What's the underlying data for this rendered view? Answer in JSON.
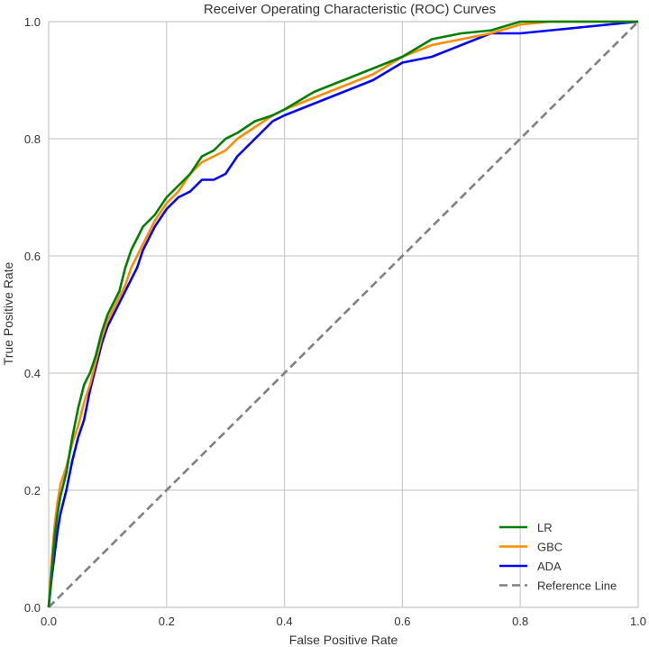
{
  "chart_data": {
    "type": "line",
    "title": "Receiver Operating Characteristic (ROC) Curves",
    "xlabel": "False Positive Rate",
    "ylabel": "True Positive Rate",
    "xlim": [
      0,
      1
    ],
    "ylim": [
      0,
      1
    ],
    "xticks": [
      "0.0",
      "0.2",
      "0.4",
      "0.6",
      "0.8",
      "1.0"
    ],
    "yticks": [
      "0.0",
      "0.2",
      "0.4",
      "0.6",
      "0.8",
      "1.0"
    ],
    "grid": true,
    "legend_position": "bottom-right",
    "series": [
      {
        "name": "LR",
        "color": "#008000",
        "style": "solid",
        "x": [
          0,
          0.005,
          0.01,
          0.015,
          0.02,
          0.03,
          0.04,
          0.05,
          0.06,
          0.07,
          0.08,
          0.09,
          0.1,
          0.11,
          0.12,
          0.13,
          0.14,
          0.15,
          0.16,
          0.18,
          0.2,
          0.22,
          0.24,
          0.26,
          0.28,
          0.3,
          0.32,
          0.35,
          0.38,
          0.4,
          0.45,
          0.5,
          0.55,
          0.6,
          0.65,
          0.7,
          0.75,
          0.8,
          0.85,
          0.9,
          0.95,
          1.0
        ],
        "y": [
          0,
          0.06,
          0.12,
          0.16,
          0.19,
          0.23,
          0.29,
          0.34,
          0.38,
          0.4,
          0.43,
          0.47,
          0.5,
          0.52,
          0.54,
          0.58,
          0.61,
          0.63,
          0.65,
          0.67,
          0.7,
          0.72,
          0.74,
          0.77,
          0.78,
          0.8,
          0.81,
          0.83,
          0.84,
          0.85,
          0.88,
          0.9,
          0.92,
          0.94,
          0.97,
          0.98,
          0.985,
          1.0,
          1.0,
          1.0,
          1.0,
          1.0
        ]
      },
      {
        "name": "GBC",
        "color": "#ff8c00",
        "style": "solid",
        "x": [
          0,
          0.005,
          0.01,
          0.015,
          0.02,
          0.03,
          0.04,
          0.05,
          0.06,
          0.07,
          0.08,
          0.09,
          0.1,
          0.11,
          0.12,
          0.13,
          0.14,
          0.15,
          0.16,
          0.18,
          0.2,
          0.22,
          0.24,
          0.26,
          0.28,
          0.3,
          0.32,
          0.35,
          0.38,
          0.4,
          0.45,
          0.5,
          0.55,
          0.6,
          0.65,
          0.7,
          0.75,
          0.8,
          0.85,
          0.9,
          0.95,
          1.0
        ],
        "y": [
          0,
          0.08,
          0.14,
          0.18,
          0.21,
          0.24,
          0.28,
          0.31,
          0.35,
          0.38,
          0.42,
          0.46,
          0.49,
          0.51,
          0.53,
          0.55,
          0.58,
          0.6,
          0.62,
          0.66,
          0.69,
          0.71,
          0.74,
          0.76,
          0.77,
          0.78,
          0.8,
          0.82,
          0.84,
          0.85,
          0.87,
          0.89,
          0.91,
          0.94,
          0.96,
          0.97,
          0.98,
          0.995,
          1.0,
          1.0,
          1.0,
          1.0
        ]
      },
      {
        "name": "ADA",
        "color": "#0000ff",
        "style": "solid",
        "x": [
          0,
          0.005,
          0.01,
          0.015,
          0.02,
          0.03,
          0.04,
          0.05,
          0.06,
          0.07,
          0.08,
          0.09,
          0.1,
          0.11,
          0.12,
          0.13,
          0.14,
          0.15,
          0.16,
          0.18,
          0.2,
          0.22,
          0.24,
          0.26,
          0.28,
          0.3,
          0.32,
          0.35,
          0.38,
          0.4,
          0.45,
          0.5,
          0.55,
          0.6,
          0.65,
          0.7,
          0.75,
          0.8,
          0.85,
          0.9,
          0.95,
          1.0
        ],
        "y": [
          0,
          0.05,
          0.09,
          0.13,
          0.16,
          0.2,
          0.25,
          0.29,
          0.32,
          0.37,
          0.41,
          0.45,
          0.48,
          0.5,
          0.52,
          0.54,
          0.56,
          0.58,
          0.61,
          0.65,
          0.68,
          0.7,
          0.71,
          0.73,
          0.73,
          0.74,
          0.77,
          0.8,
          0.83,
          0.84,
          0.86,
          0.88,
          0.9,
          0.93,
          0.94,
          0.96,
          0.98,
          0.98,
          0.985,
          0.99,
          0.995,
          1.0
        ]
      },
      {
        "name": "Reference Line",
        "color": "#808080",
        "style": "dashed",
        "x": [
          0,
          1
        ],
        "y": [
          0,
          1
        ]
      }
    ]
  }
}
